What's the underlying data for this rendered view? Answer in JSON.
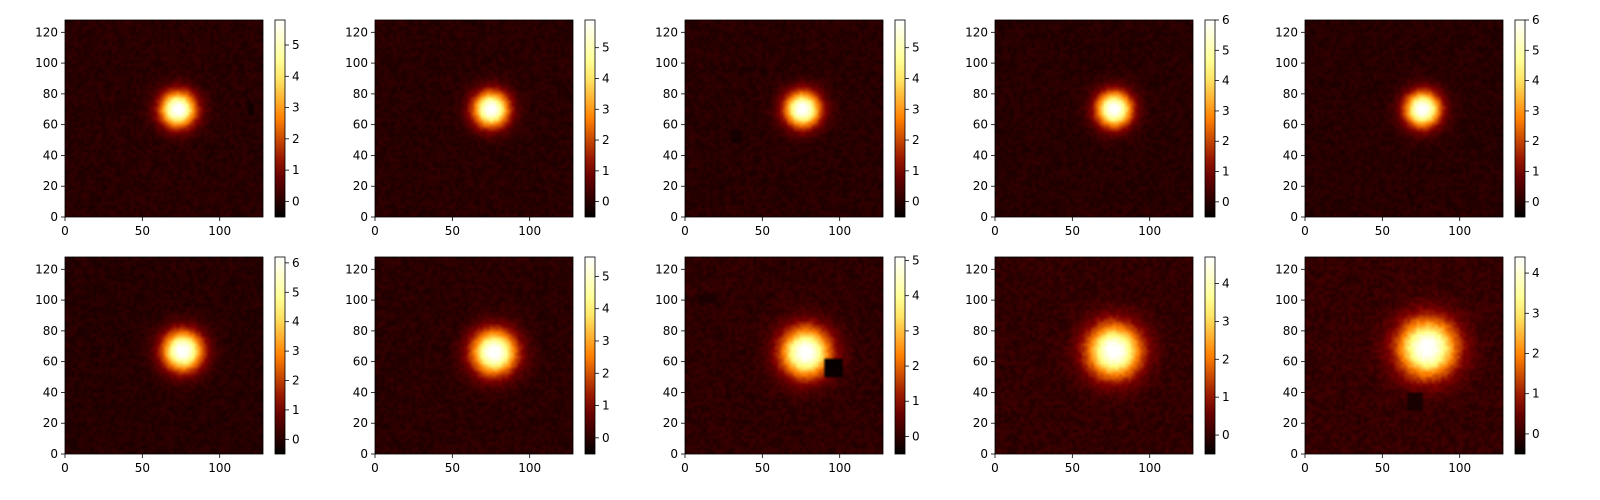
{
  "chart_data": [
    {
      "type": "heatmap",
      "colormap": "afmhot",
      "xlim": [
        0,
        128
      ],
      "ylim": [
        0,
        128
      ],
      "xticks": [
        0,
        50,
        100
      ],
      "yticks": [
        0,
        20,
        40,
        60,
        80,
        100,
        120
      ],
      "cbar_range": [
        -0.5,
        5.8
      ],
      "cbar_ticks": [
        0,
        1,
        2,
        3,
        4,
        5
      ],
      "source": {
        "x": 73,
        "y": 70,
        "sigma": 8,
        "peak": 5.8
      },
      "patches": [
        {
          "x": 120,
          "y": 70,
          "w": 3,
          "h": 8,
          "v": -0.3
        }
      ]
    },
    {
      "type": "heatmap",
      "colormap": "afmhot",
      "xlim": [
        0,
        128
      ],
      "ylim": [
        0,
        128
      ],
      "xticks": [
        0,
        50,
        100
      ],
      "yticks": [
        0,
        20,
        40,
        60,
        80,
        100,
        120
      ],
      "cbar_range": [
        -0.5,
        5.9
      ],
      "cbar_ticks": [
        0,
        1,
        2,
        3,
        4,
        5
      ],
      "source": {
        "x": 75,
        "y": 70,
        "sigma": 8,
        "peak": 5.9
      },
      "patches": []
    },
    {
      "type": "heatmap",
      "colormap": "afmhot",
      "xlim": [
        0,
        128
      ],
      "ylim": [
        0,
        128
      ],
      "xticks": [
        0,
        50,
        100
      ],
      "yticks": [
        0,
        20,
        40,
        60,
        80,
        100,
        120
      ],
      "cbar_range": [
        -0.5,
        5.9
      ],
      "cbar_ticks": [
        0,
        1,
        2,
        3,
        4,
        5
      ],
      "source": {
        "x": 76,
        "y": 70,
        "sigma": 8,
        "peak": 5.9
      },
      "patches": [
        {
          "x": 33,
          "y": 52,
          "w": 6,
          "h": 6,
          "v": -0.25
        },
        {
          "x": 40,
          "y": 96,
          "w": 6,
          "h": 3,
          "v": -0.15
        }
      ]
    },
    {
      "type": "heatmap",
      "colormap": "afmhot",
      "xlim": [
        0,
        128
      ],
      "ylim": [
        0,
        128
      ],
      "xticks": [
        0,
        50,
        100
      ],
      "yticks": [
        0,
        20,
        40,
        60,
        80,
        100,
        120
      ],
      "cbar_range": [
        -0.5,
        6.0
      ],
      "cbar_ticks": [
        0,
        1,
        2,
        3,
        4,
        5,
        6
      ],
      "source": {
        "x": 77,
        "y": 70,
        "sigma": 8,
        "peak": 6.0
      },
      "patches": []
    },
    {
      "type": "heatmap",
      "colormap": "afmhot",
      "xlim": [
        0,
        128
      ],
      "ylim": [
        0,
        128
      ],
      "xticks": [
        0,
        50,
        100
      ],
      "yticks": [
        0,
        20,
        40,
        60,
        80,
        100,
        120
      ],
      "cbar_range": [
        -0.5,
        6.0
      ],
      "cbar_ticks": [
        0,
        1,
        2,
        3,
        4,
        5,
        6
      ],
      "source": {
        "x": 76,
        "y": 70,
        "sigma": 8,
        "peak": 6.0
      },
      "patches": []
    },
    {
      "type": "heatmap",
      "colormap": "afmhot",
      "xlim": [
        0,
        128
      ],
      "ylim": [
        0,
        128
      ],
      "xticks": [
        0,
        50,
        100
      ],
      "yticks": [
        0,
        20,
        40,
        60,
        80,
        100,
        120
      ],
      "cbar_range": [
        -0.5,
        6.2
      ],
      "cbar_ticks": [
        0,
        1,
        2,
        3,
        4,
        5,
        6
      ],
      "source": {
        "x": 76,
        "y": 67,
        "sigma": 9,
        "peak": 6.2
      },
      "patches": [
        {
          "x": 22,
          "y": 41,
          "w": 8,
          "h": 3,
          "v": -0.2
        }
      ]
    },
    {
      "type": "heatmap",
      "colormap": "afmhot",
      "xlim": [
        0,
        128
      ],
      "ylim": [
        0,
        128
      ],
      "xticks": [
        0,
        50,
        100
      ],
      "yticks": [
        0,
        20,
        40,
        60,
        80,
        100,
        120
      ],
      "cbar_range": [
        -0.5,
        5.6
      ],
      "cbar_ticks": [
        0,
        1,
        2,
        3,
        4,
        5
      ],
      "source": {
        "x": 77,
        "y": 66,
        "sigma": 10,
        "peak": 5.6
      },
      "patches": []
    },
    {
      "type": "heatmap",
      "colormap": "afmhot",
      "xlim": [
        0,
        128
      ],
      "ylim": [
        0,
        128
      ],
      "xticks": [
        0,
        50,
        100
      ],
      "yticks": [
        0,
        20,
        40,
        60,
        80,
        100,
        120
      ],
      "cbar_range": [
        -0.5,
        5.1
      ],
      "cbar_ticks": [
        0,
        1,
        2,
        3,
        4,
        5
      ],
      "source": {
        "x": 78,
        "y": 66,
        "sigma": 11,
        "peak": 5.1
      },
      "patches": [
        {
          "x": 96,
          "y": 56,
          "w": 12,
          "h": 12,
          "v": -0.4
        },
        {
          "x": 14,
          "y": 101,
          "w": 10,
          "h": 4,
          "v": -0.2
        }
      ]
    },
    {
      "type": "heatmap",
      "colormap": "afmhot",
      "xlim": [
        0,
        128
      ],
      "ylim": [
        0,
        128
      ],
      "xticks": [
        0,
        50,
        100
      ],
      "yticks": [
        0,
        20,
        40,
        60,
        80,
        100,
        120
      ],
      "cbar_range": [
        -0.5,
        4.7
      ],
      "cbar_ticks": [
        0,
        1,
        2,
        3,
        4
      ],
      "source": {
        "x": 77,
        "y": 67,
        "sigma": 12,
        "peak": 4.7
      },
      "patches": []
    },
    {
      "type": "heatmap",
      "colormap": "afmhot",
      "xlim": [
        0,
        128
      ],
      "ylim": [
        0,
        128
      ],
      "xticks": [
        0,
        50,
        100
      ],
      "yticks": [
        0,
        20,
        40,
        60,
        80,
        100,
        120
      ],
      "cbar_range": [
        -0.5,
        4.4
      ],
      "cbar_ticks": [
        0,
        1,
        2,
        3,
        4
      ],
      "source": {
        "x": 79,
        "y": 69,
        "sigma": 13,
        "peak": 4.4
      },
      "patches": [
        {
          "x": 71,
          "y": 34,
          "w": 8,
          "h": 10,
          "v": -0.25
        }
      ]
    }
  ]
}
